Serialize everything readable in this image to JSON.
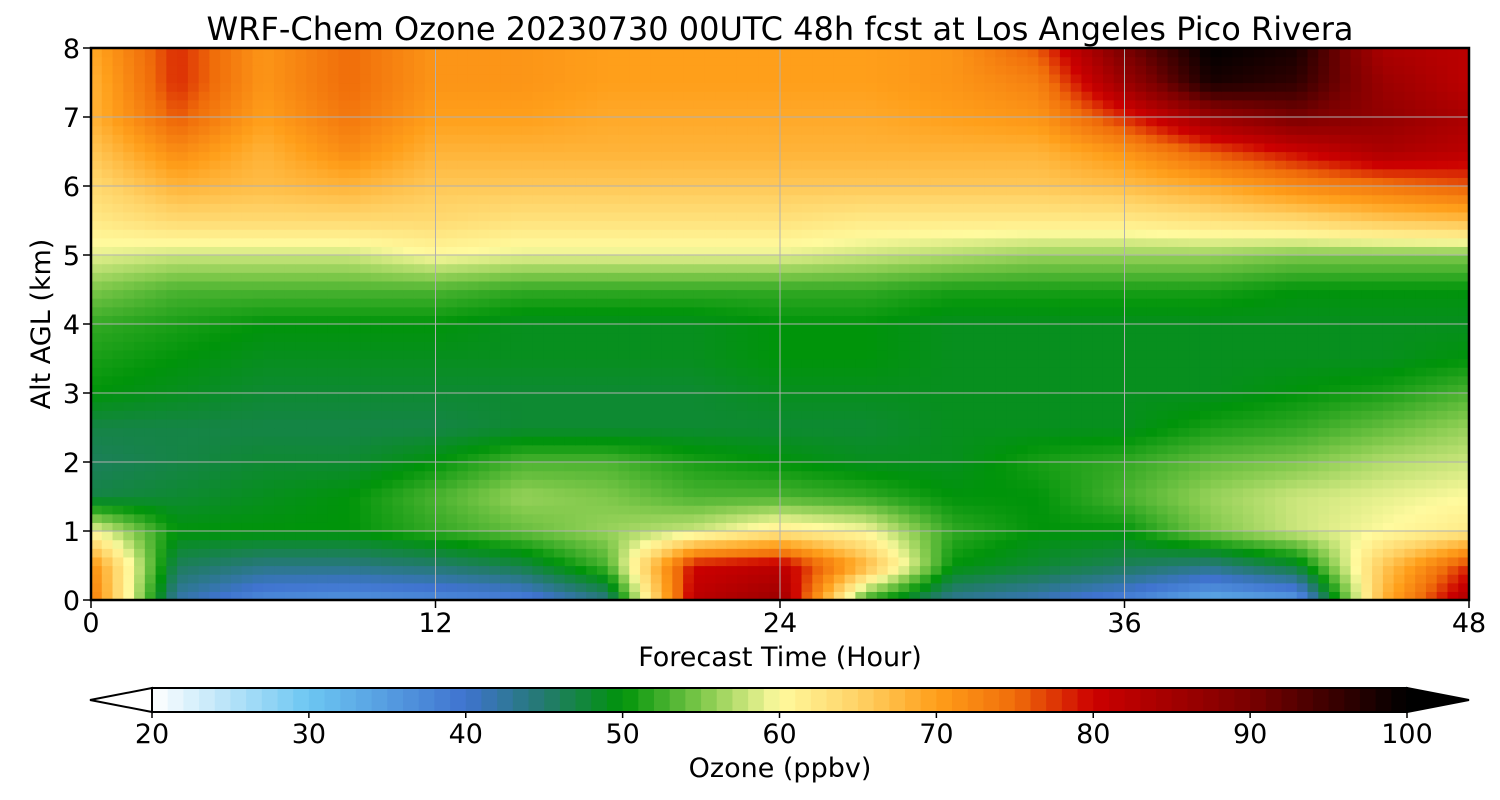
{
  "chart_data": {
    "type": "heatmap",
    "title": "WRF-Chem Ozone  20230730 00UTC 48h fcst at Los Angeles Pico Rivera",
    "xlabel": "Forecast Time (Hour)",
    "ylabel": "Alt AGL (km)",
    "xlim": [
      0,
      48
    ],
    "ylim": [
      0,
      8
    ],
    "xticks": [
      0,
      12,
      24,
      36,
      48
    ],
    "yticks": [
      0,
      1,
      2,
      3,
      4,
      5,
      6,
      7,
      8
    ],
    "grid": true,
    "colorbar": {
      "label": "Ozone  (ppbv)",
      "min": 20,
      "max": 100,
      "ticks": [
        20,
        30,
        40,
        50,
        60,
        70,
        80,
        90,
        100
      ],
      "extend": "both",
      "orientation": "horizontal",
      "stops": [
        {
          "v": 20,
          "c": "#ffffff"
        },
        {
          "v": 30,
          "c": "#6cc6f2"
        },
        {
          "v": 40,
          "c": "#3f73cf"
        },
        {
          "v": 45,
          "c": "#237a6e"
        },
        {
          "v": 50,
          "c": "#00940a"
        },
        {
          "v": 55,
          "c": "#7ec84a"
        },
        {
          "v": 60,
          "c": "#fffa9e"
        },
        {
          "v": 65,
          "c": "#ffd266"
        },
        {
          "v": 70,
          "c": "#ff9f1a"
        },
        {
          "v": 75,
          "c": "#f06d0a"
        },
        {
          "v": 80,
          "c": "#cc0000"
        },
        {
          "v": 90,
          "c": "#7a0000"
        },
        {
          "v": 100,
          "c": "#000000"
        }
      ]
    },
    "x": [
      0,
      3,
      6,
      9,
      12,
      15,
      18,
      21,
      24,
      27,
      30,
      33,
      36,
      39,
      42,
      45,
      48
    ],
    "y": [
      0,
      0.5,
      1,
      1.5,
      2,
      2.5,
      3,
      3.5,
      4,
      4.5,
      5,
      5.5,
      6,
      6.5,
      7,
      7.5,
      8
    ],
    "values": [
      [
        74,
        42,
        37,
        36,
        37,
        38,
        44,
        82,
        86,
        52,
        43,
        41,
        38,
        33,
        35,
        68,
        84
      ],
      [
        72,
        46,
        44,
        44,
        45,
        47,
        53,
        80,
        82,
        68,
        50,
        48,
        46,
        44,
        48,
        66,
        78
      ],
      [
        60,
        50,
        50,
        50,
        52,
        54,
        56,
        58,
        62,
        60,
        52,
        50,
        50,
        55,
        58,
        60,
        62
      ],
      [
        47,
        48,
        49,
        50,
        53,
        56,
        55,
        53,
        53,
        52,
        50,
        50,
        53,
        56,
        58,
        59,
        60
      ],
      [
        46,
        47,
        48,
        48,
        50,
        53,
        53,
        51,
        50,
        49,
        49,
        51,
        52,
        54,
        55,
        57,
        58
      ],
      [
        47,
        47,
        47,
        47,
        47,
        48,
        48,
        48,
        48,
        48,
        49,
        49,
        49,
        51,
        52,
        54,
        56
      ],
      [
        50,
        49,
        48,
        48,
        48,
        48,
        48,
        48,
        49,
        49,
        49,
        49,
        49,
        49,
        50,
        51,
        53
      ],
      [
        51,
        50,
        49,
        49,
        49,
        49,
        49,
        49,
        50,
        50,
        49,
        49,
        49,
        49,
        49,
        49,
        50
      ],
      [
        52,
        51,
        50,
        50,
        50,
        49,
        49,
        49,
        50,
        50,
        49,
        49,
        49,
        49,
        49,
        49,
        49
      ],
      [
        55,
        53,
        53,
        53,
        53,
        52,
        52,
        52,
        52,
        52,
        51,
        51,
        51,
        51,
        50,
        50,
        50
      ],
      [
        59,
        58,
        58,
        58,
        60,
        59,
        59,
        59,
        59,
        58,
        57,
        56,
        56,
        56,
        55,
        55,
        55
      ],
      [
        62,
        64,
        64,
        64,
        64,
        63,
        63,
        63,
        63,
        62,
        62,
        62,
        62,
        63,
        64,
        66,
        67
      ],
      [
        64,
        68,
        67,
        68,
        66,
        66,
        66,
        66,
        66,
        66,
        66,
        66,
        67,
        69,
        72,
        74,
        76
      ],
      [
        66,
        72,
        68,
        72,
        68,
        68,
        68,
        68,
        68,
        68,
        68,
        68,
        71,
        76,
        80,
        84,
        82
      ],
      [
        68,
        76,
        70,
        74,
        70,
        70,
        69,
        69,
        69,
        69,
        70,
        71,
        78,
        86,
        90,
        87,
        84
      ],
      [
        68,
        78,
        71,
        75,
        71,
        71,
        70,
        70,
        70,
        70,
        71,
        73,
        86,
        98,
        96,
        86,
        82
      ],
      [
        69,
        78,
        71,
        75,
        71,
        71,
        70,
        70,
        70,
        70,
        71,
        76,
        90,
        100,
        98,
        84,
        82
      ]
    ]
  }
}
